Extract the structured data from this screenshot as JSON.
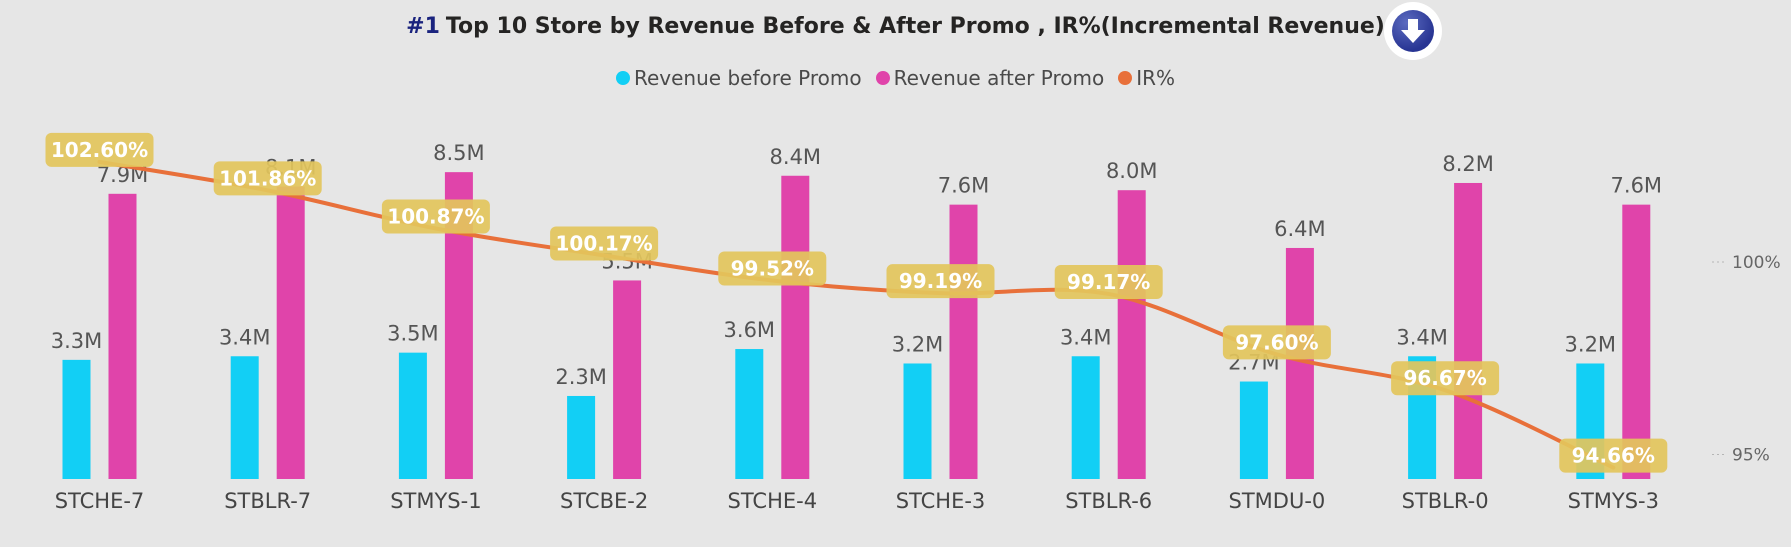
{
  "header": {
    "title_number": "#1",
    "title_text": "Top 10 Store by Revenue Before & After Promo , IR%(Incremental Revenue)",
    "button_icon": "arrow-down-circle-icon"
  },
  "colors": {
    "before": "#12cff5",
    "after": "#e044aa",
    "ir": "#e8703a",
    "ir_label_bg": "#e3c65c"
  },
  "chart_data": {
    "type": "bar",
    "categories": [
      "STCHE-7",
      "STBLR-7",
      "STMYS-1",
      "STCBE-2",
      "STCHE-4",
      "STCHE-3",
      "STBLR-6",
      "STMDU-0",
      "STBLR-0",
      "STMYS-3"
    ],
    "series": [
      {
        "name": "Revenue before Promo",
        "values": [
          3.3,
          3.4,
          3.5,
          2.3,
          3.6,
          3.2,
          3.4,
          2.7,
          3.4,
          3.2
        ],
        "labels": [
          "3.3M",
          "3.4M",
          "3.5M",
          "2.3M",
          "3.6M",
          "3.2M",
          "3.4M",
          "2.7M",
          "3.4M",
          "3.2M"
        ]
      },
      {
        "name": "Revenue after Promo",
        "values": [
          7.9,
          8.1,
          8.5,
          5.5,
          8.4,
          7.6,
          8.0,
          6.4,
          8.2,
          7.6
        ],
        "labels": [
          "7.9M",
          "8.1M",
          "8.5M",
          "5.5M",
          "8.4M",
          "7.6M",
          "8.0M",
          "6.4M",
          "8.2M",
          "7.6M"
        ]
      },
      {
        "name": "IR%",
        "axis": "secondary",
        "values": [
          102.6,
          101.86,
          100.87,
          100.17,
          99.52,
          99.19,
          99.17,
          97.6,
          96.67,
          94.66
        ],
        "labels": [
          "102.60%",
          "101.86%",
          "100.87%",
          "100.17%",
          "99.52%",
          "99.19%",
          "99.17%",
          "97.60%",
          "96.67%",
          "94.66%"
        ]
      }
    ],
    "y_ticks_secondary": [
      {
        "value": 100,
        "label": "100%"
      },
      {
        "value": 95,
        "label": "95%"
      }
    ],
    "legend_position": "top-center",
    "grid": false
  }
}
